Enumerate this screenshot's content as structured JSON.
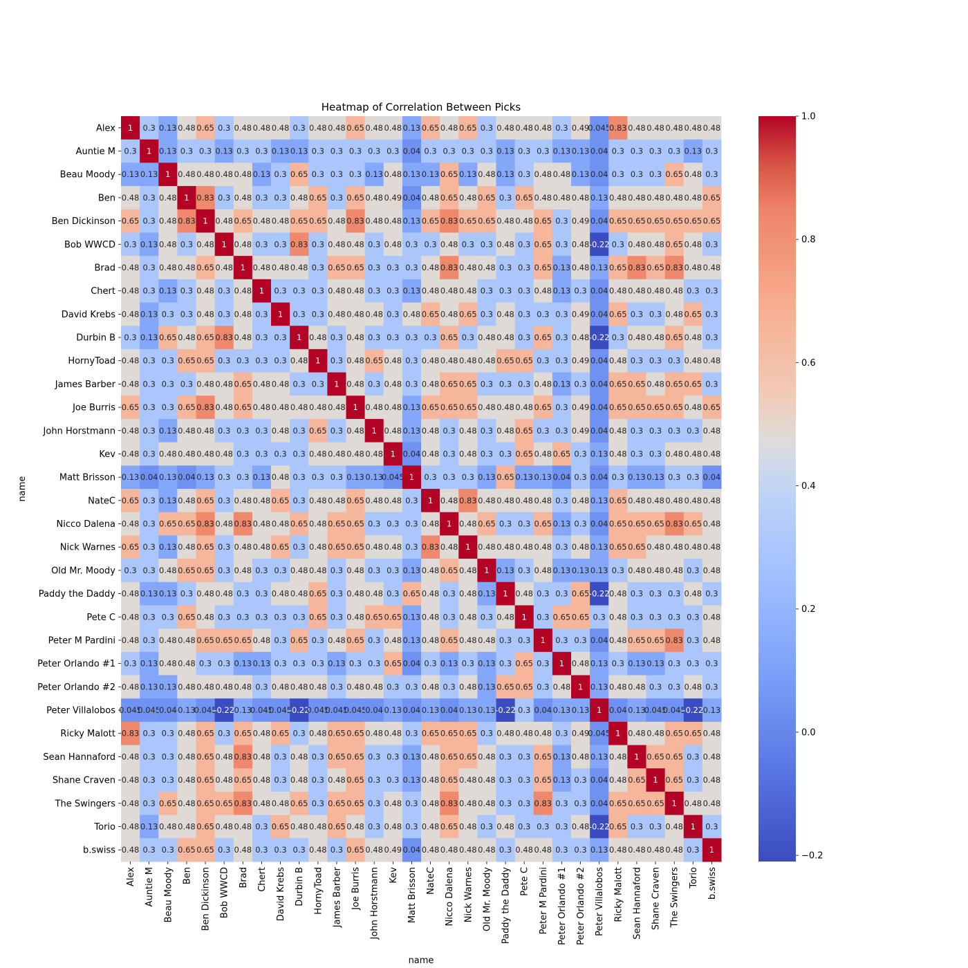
{
  "chart_data": {
    "type": "heatmap",
    "title": "Heatmap of Correlation Between Picks",
    "xlabel": "name",
    "ylabel": "name",
    "labels": [
      "Alex",
      "Auntie M",
      "Beau Moody",
      "Ben",
      "Ben Dickinson",
      "Bob WWCD",
      "Brad",
      "Chert",
      "David Krebs",
      "Durbin B",
      "HornyToad",
      "James Barber",
      "Joe Burris",
      "John Horstmann",
      "Kev",
      "Matt Brisson",
      "NateC",
      "Nicco Dalena",
      "Nick Warnes",
      "Old Mr. Moody",
      "Paddy the Daddy",
      "Pete C",
      "Peter M Pardini",
      "Peter Orlando #1",
      "Peter Orlando #2",
      "Peter Villalobos",
      "Ricky Malott",
      "Sean Hannaford",
      "Shane Craven",
      "The Swingers",
      "Torio",
      "b.swiss"
    ],
    "values": [
      [
        "1",
        "0.3",
        "0.13",
        "0.48",
        "0.65",
        "0.3",
        "0.48",
        "0.48",
        "0.48",
        "0.3",
        "0.48",
        "0.48",
        "0.65",
        "0.48",
        "0.48",
        "0.13",
        "0.65",
        "0.48",
        "0.65",
        "0.3",
        "0.48",
        "0.48",
        "0.48",
        "0.3",
        "0.49",
        "0.045",
        "0.83",
        "0.48",
        "0.48",
        "0.48",
        "0.48",
        "0.48"
      ],
      [
        "0.3",
        "1",
        "0.13",
        "0.3",
        "0.3",
        "0.13",
        "0.3",
        "0.3",
        "0.13",
        "0.13",
        "0.3",
        "0.3",
        "0.3",
        "0.3",
        "0.3",
        "0.04",
        "0.3",
        "0.3",
        "0.3",
        "0.3",
        "0.13",
        "0.3",
        "0.3",
        "0.13",
        "0.13",
        "0.04",
        "0.3",
        "0.3",
        "0.3",
        "0.3",
        "0.13",
        "0.3"
      ],
      [
        "0.13",
        "0.13",
        "1",
        "0.48",
        "0.48",
        "0.48",
        "0.48",
        "0.13",
        "0.3",
        "0.65",
        "0.3",
        "0.3",
        "0.3",
        "0.13",
        "0.48",
        "0.13",
        "0.13",
        "0.65",
        "0.13",
        "0.48",
        "0.13",
        "0.3",
        "0.48",
        "0.48",
        "0.13",
        "0.04",
        "0.3",
        "0.3",
        "0.3",
        "0.65",
        "0.48",
        "0.3"
      ],
      [
        "0.48",
        "0.3",
        "0.48",
        "1",
        "0.83",
        "0.3",
        "0.48",
        "0.3",
        "0.3",
        "0.48",
        "0.65",
        "0.3",
        "0.65",
        "0.48",
        "0.49",
        "0.04",
        "0.48",
        "0.65",
        "0.48",
        "0.65",
        "0.3",
        "0.65",
        "0.48",
        "0.48",
        "0.48",
        "0.13",
        "0.48",
        "0.48",
        "0.48",
        "0.48",
        "0.48",
        "0.65"
      ],
      [
        "0.65",
        "0.3",
        "0.48",
        "0.83",
        "1",
        "0.48",
        "0.65",
        "0.48",
        "0.48",
        "0.65",
        "0.65",
        "0.48",
        "0.83",
        "0.48",
        "0.48",
        "0.13",
        "0.65",
        "0.83",
        "0.65",
        "0.65",
        "0.48",
        "0.48",
        "0.65",
        "0.3",
        "0.49",
        "0.04",
        "0.65",
        "0.65",
        "0.65",
        "0.65",
        "0.65",
        "0.65"
      ],
      [
        "0.3",
        "0.13",
        "0.48",
        "0.3",
        "0.48",
        "1",
        "0.48",
        "0.3",
        "0.3",
        "0.83",
        "0.3",
        "0.48",
        "0.48",
        "0.3",
        "0.48",
        "0.3",
        "0.3",
        "0.48",
        "0.3",
        "0.3",
        "0.48",
        "0.3",
        "0.65",
        "0.3",
        "0.48",
        "-0.22",
        "0.3",
        "0.48",
        "0.48",
        "0.65",
        "0.48",
        "0.3"
      ],
      [
        "0.48",
        "0.3",
        "0.48",
        "0.48",
        "0.65",
        "0.48",
        "1",
        "0.48",
        "0.48",
        "0.48",
        "0.3",
        "0.65",
        "0.65",
        "0.3",
        "0.3",
        "0.3",
        "0.48",
        "0.83",
        "0.48",
        "0.48",
        "0.3",
        "0.3",
        "0.65",
        "0.13",
        "0.48",
        "0.13",
        "0.65",
        "0.83",
        "0.65",
        "0.83",
        "0.48",
        "0.48"
      ],
      [
        "0.48",
        "0.3",
        "0.13",
        "0.3",
        "0.48",
        "0.3",
        "0.48",
        "1",
        "0.3",
        "0.3",
        "0.3",
        "0.48",
        "0.48",
        "0.3",
        "0.3",
        "0.13",
        "0.48",
        "0.48",
        "0.48",
        "0.3",
        "0.3",
        "0.3",
        "0.48",
        "0.13",
        "0.3",
        "0.04",
        "0.48",
        "0.48",
        "0.48",
        "0.48",
        "0.3",
        "0.3"
      ],
      [
        "0.48",
        "0.13",
        "0.3",
        "0.3",
        "0.48",
        "0.3",
        "0.48",
        "0.3",
        "1",
        "0.3",
        "0.3",
        "0.48",
        "0.48",
        "0.48",
        "0.3",
        "0.48",
        "0.65",
        "0.48",
        "0.65",
        "0.3",
        "0.48",
        "0.3",
        "0.3",
        "0.3",
        "0.49",
        "0.04",
        "0.65",
        "0.3",
        "0.3",
        "0.48",
        "0.65",
        "0.3"
      ],
      [
        "0.3",
        "0.13",
        "0.65",
        "0.48",
        "0.65",
        "0.83",
        "0.48",
        "0.3",
        "0.3",
        "1",
        "0.48",
        "0.3",
        "0.48",
        "0.3",
        "0.3",
        "0.3",
        "0.3",
        "0.65",
        "0.3",
        "0.48",
        "0.48",
        "0.3",
        "0.65",
        "0.3",
        "0.48",
        "-0.22",
        "0.3",
        "0.48",
        "0.48",
        "0.65",
        "0.48",
        "0.3"
      ],
      [
        "0.48",
        "0.3",
        "0.3",
        "0.65",
        "0.65",
        "0.3",
        "0.3",
        "0.3",
        "0.3",
        "0.48",
        "1",
        "0.3",
        "0.48",
        "0.65",
        "0.48",
        "0.3",
        "0.48",
        "0.48",
        "0.48",
        "0.48",
        "0.65",
        "0.65",
        "0.3",
        "0.3",
        "0.49",
        "0.04",
        "0.48",
        "0.3",
        "0.3",
        "0.3",
        "0.48",
        "0.48"
      ],
      [
        "0.48",
        "0.3",
        "0.3",
        "0.3",
        "0.48",
        "0.48",
        "0.65",
        "0.48",
        "0.48",
        "0.3",
        "0.3",
        "1",
        "0.48",
        "0.3",
        "0.48",
        "0.3",
        "0.48",
        "0.65",
        "0.65",
        "0.3",
        "0.3",
        "0.3",
        "0.48",
        "0.13",
        "0.3",
        "0.04",
        "0.65",
        "0.65",
        "0.48",
        "0.65",
        "0.65",
        "0.3"
      ],
      [
        "0.65",
        "0.3",
        "0.3",
        "0.65",
        "0.83",
        "0.48",
        "0.65",
        "0.48",
        "0.48",
        "0.48",
        "0.48",
        "0.48",
        "1",
        "0.48",
        "0.48",
        "0.13",
        "0.65",
        "0.65",
        "0.65",
        "0.48",
        "0.48",
        "0.48",
        "0.65",
        "0.3",
        "0.49",
        "0.04",
        "0.65",
        "0.65",
        "0.65",
        "0.65",
        "0.48",
        "0.65"
      ],
      [
        "0.48",
        "0.3",
        "0.13",
        "0.48",
        "0.48",
        "0.3",
        "0.3",
        "0.3",
        "0.48",
        "0.3",
        "0.65",
        "0.3",
        "0.48",
        "1",
        "0.48",
        "0.13",
        "0.48",
        "0.3",
        "0.48",
        "0.3",
        "0.48",
        "0.65",
        "0.3",
        "0.3",
        "0.49",
        "0.04",
        "0.48",
        "0.3",
        "0.3",
        "0.3",
        "0.3",
        "0.48"
      ],
      [
        "0.48",
        "0.3",
        "0.48",
        "0.48",
        "0.48",
        "0.48",
        "0.3",
        "0.3",
        "0.3",
        "0.3",
        "0.48",
        "0.48",
        "0.48",
        "0.48",
        "1",
        "0.04",
        "0.48",
        "0.3",
        "0.48",
        "0.3",
        "0.3",
        "0.65",
        "0.48",
        "0.65",
        "0.3",
        "0.13",
        "0.48",
        "0.3",
        "0.3",
        "0.48",
        "0.48",
        "0.48"
      ],
      [
        "0.13",
        "0.04",
        "0.13",
        "0.04",
        "0.13",
        "0.3",
        "0.3",
        "0.13",
        "0.48",
        "0.3",
        "0.3",
        "0.3",
        "0.13",
        "0.13",
        "0.045",
        "1",
        "0.3",
        "0.3",
        "0.3",
        "0.13",
        "0.65",
        "0.13",
        "0.13",
        "0.04",
        "0.3",
        "0.04",
        "0.3",
        "0.13",
        "0.13",
        "0.3",
        "0.3",
        "0.04"
      ],
      [
        "0.65",
        "0.3",
        "0.13",
        "0.48",
        "0.65",
        "0.3",
        "0.48",
        "0.48",
        "0.65",
        "0.3",
        "0.48",
        "0.48",
        "0.65",
        "0.48",
        "0.48",
        "0.3",
        "1",
        "0.48",
        "0.83",
        "0.48",
        "0.48",
        "0.48",
        "0.48",
        "0.3",
        "0.48",
        "0.13",
        "0.65",
        "0.48",
        "0.48",
        "0.48",
        "0.48",
        "0.48"
      ],
      [
        "0.48",
        "0.3",
        "0.65",
        "0.65",
        "0.83",
        "0.48",
        "0.83",
        "0.48",
        "0.48",
        "0.65",
        "0.48",
        "0.65",
        "0.65",
        "0.3",
        "0.3",
        "0.3",
        "0.48",
        "1",
        "0.48",
        "0.65",
        "0.3",
        "0.3",
        "0.65",
        "0.13",
        "0.3",
        "0.04",
        "0.65",
        "0.65",
        "0.65",
        "0.83",
        "0.65",
        "0.48"
      ],
      [
        "0.65",
        "0.3",
        "0.13",
        "0.48",
        "0.65",
        "0.3",
        "0.48",
        "0.48",
        "0.65",
        "0.3",
        "0.48",
        "0.65",
        "0.65",
        "0.48",
        "0.48",
        "0.3",
        "0.83",
        "0.48",
        "1",
        "0.48",
        "0.48",
        "0.48",
        "0.48",
        "0.3",
        "0.48",
        "0.13",
        "0.65",
        "0.65",
        "0.48",
        "0.48",
        "0.48",
        "0.48"
      ],
      [
        "0.3",
        "0.3",
        "0.48",
        "0.65",
        "0.65",
        "0.3",
        "0.48",
        "0.3",
        "0.3",
        "0.48",
        "0.48",
        "0.3",
        "0.48",
        "0.3",
        "0.3",
        "0.13",
        "0.48",
        "0.65",
        "0.48",
        "1",
        "0.13",
        "0.3",
        "0.48",
        "0.13",
        "0.13",
        "0.13",
        "0.3",
        "0.48",
        "0.48",
        "0.48",
        "0.3",
        "0.48"
      ],
      [
        "0.48",
        "0.13",
        "0.13",
        "0.3",
        "0.48",
        "0.48",
        "0.3",
        "0.3",
        "0.48",
        "0.48",
        "0.65",
        "0.3",
        "0.48",
        "0.48",
        "0.3",
        "0.65",
        "0.48",
        "0.3",
        "0.48",
        "0.13",
        "1",
        "0.48",
        "0.3",
        "0.3",
        "0.65",
        "-0.22",
        "0.48",
        "0.3",
        "0.3",
        "0.3",
        "0.48",
        "0.3"
      ],
      [
        "0.48",
        "0.3",
        "0.3",
        "0.65",
        "0.48",
        "0.3",
        "0.3",
        "0.3",
        "0.3",
        "0.3",
        "0.65",
        "0.3",
        "0.48",
        "0.65",
        "0.65",
        "0.13",
        "0.48",
        "0.3",
        "0.48",
        "0.3",
        "0.48",
        "1",
        "0.3",
        "0.65",
        "0.65",
        "0.3",
        "0.48",
        "0.3",
        "0.3",
        "0.3",
        "0.3",
        "0.48"
      ],
      [
        "0.48",
        "0.3",
        "0.48",
        "0.48",
        "0.65",
        "0.65",
        "0.65",
        "0.48",
        "0.3",
        "0.65",
        "0.3",
        "0.48",
        "0.65",
        "0.3",
        "0.48",
        "0.13",
        "0.48",
        "0.65",
        "0.48",
        "0.48",
        "0.3",
        "0.3",
        "1",
        "0.3",
        "0.3",
        "0.04",
        "0.48",
        "0.65",
        "0.65",
        "0.83",
        "0.3",
        "0.48"
      ],
      [
        "0.3",
        "0.13",
        "0.48",
        "0.48",
        "0.3",
        "0.3",
        "0.13",
        "0.13",
        "0.3",
        "0.3",
        "0.3",
        "0.13",
        "0.3",
        "0.3",
        "0.65",
        "0.04",
        "0.3",
        "0.13",
        "0.3",
        "0.13",
        "0.3",
        "0.65",
        "0.3",
        "1",
        "0.48",
        "0.13",
        "0.3",
        "0.13",
        "0.13",
        "0.3",
        "0.3",
        "0.3"
      ],
      [
        "0.48",
        "0.13",
        "0.13",
        "0.48",
        "0.48",
        "0.48",
        "0.48",
        "0.3",
        "0.48",
        "0.48",
        "0.48",
        "0.3",
        "0.48",
        "0.48",
        "0.3",
        "0.3",
        "0.48",
        "0.3",
        "0.48",
        "0.13",
        "0.65",
        "0.65",
        "0.3",
        "0.48",
        "1",
        "0.13",
        "0.48",
        "0.48",
        "0.3",
        "0.3",
        "0.48",
        "0.3"
      ],
      [
        "0.045",
        "0.045",
        "0.04",
        "0.13",
        "0.045",
        "-0.22",
        "0.13",
        "0.045",
        "0.045",
        "-0.22",
        "0.045",
        "0.045",
        "0.045",
        "0.04",
        "0.13",
        "0.04",
        "0.13",
        "0.04",
        "0.13",
        "0.13",
        "-0.22",
        "0.3",
        "0.04",
        "0.13",
        "0.13",
        "1",
        "0.04",
        "0.13",
        "0.045",
        "0.045",
        "-0.22",
        "0.13"
      ],
      [
        "0.83",
        "0.3",
        "0.3",
        "0.48",
        "0.65",
        "0.3",
        "0.65",
        "0.48",
        "0.65",
        "0.3",
        "0.48",
        "0.65",
        "0.65",
        "0.48",
        "0.48",
        "0.3",
        "0.65",
        "0.65",
        "0.65",
        "0.3",
        "0.48",
        "0.48",
        "0.48",
        "0.3",
        "0.49",
        "0.045",
        "1",
        "0.48",
        "0.48",
        "0.65",
        "0.65",
        "0.48"
      ],
      [
        "0.48",
        "0.3",
        "0.3",
        "0.48",
        "0.65",
        "0.48",
        "0.83",
        "0.48",
        "0.3",
        "0.48",
        "0.3",
        "0.65",
        "0.65",
        "0.3",
        "0.3",
        "0.13",
        "0.48",
        "0.65",
        "0.65",
        "0.48",
        "0.3",
        "0.3",
        "0.65",
        "0.13",
        "0.48",
        "0.13",
        "0.48",
        "1",
        "0.65",
        "0.65",
        "0.3",
        "0.48"
      ],
      [
        "0.48",
        "0.3",
        "0.3",
        "0.48",
        "0.65",
        "0.48",
        "0.65",
        "0.48",
        "0.3",
        "0.48",
        "0.3",
        "0.48",
        "0.65",
        "0.3",
        "0.3",
        "0.13",
        "0.48",
        "0.65",
        "0.48",
        "0.48",
        "0.3",
        "0.3",
        "0.65",
        "0.13",
        "0.3",
        "0.04",
        "0.48",
        "0.65",
        "1",
        "0.65",
        "0.3",
        "0.48"
      ],
      [
        "0.48",
        "0.3",
        "0.65",
        "0.48",
        "0.65",
        "0.65",
        "0.83",
        "0.48",
        "0.48",
        "0.65",
        "0.3",
        "0.65",
        "0.65",
        "0.3",
        "0.48",
        "0.3",
        "0.48",
        "0.83",
        "0.48",
        "0.48",
        "0.3",
        "0.3",
        "0.83",
        "0.3",
        "0.3",
        "0.04",
        "0.65",
        "0.65",
        "0.65",
        "1",
        "0.48",
        "0.48"
      ],
      [
        "0.48",
        "0.13",
        "0.48",
        "0.48",
        "0.65",
        "0.48",
        "0.48",
        "0.3",
        "0.65",
        "0.48",
        "0.48",
        "0.65",
        "0.48",
        "0.3",
        "0.48",
        "0.3",
        "0.48",
        "0.65",
        "0.48",
        "0.3",
        "0.48",
        "0.3",
        "0.3",
        "0.3",
        "0.48",
        "-0.22",
        "0.65",
        "0.3",
        "0.3",
        "0.48",
        "1",
        "0.3"
      ],
      [
        "0.48",
        "0.3",
        "0.3",
        "0.65",
        "0.65",
        "0.3",
        "0.48",
        "0.3",
        "0.3",
        "0.3",
        "0.48",
        "0.3",
        "0.65",
        "0.48",
        "0.49",
        "0.04",
        "0.48",
        "0.48",
        "0.48",
        "0.48",
        "0.3",
        "0.48",
        "0.48",
        "0.3",
        "0.3",
        "0.13",
        "0.48",
        "0.48",
        "0.48",
        "0.48",
        "0.3",
        "1"
      ]
    ],
    "colorbar": {
      "min": -0.21,
      "max": 1.0,
      "ticks": [
        "1.0",
        "0.8",
        "0.6",
        "0.4",
        "0.2",
        "0.0",
        "−0.2"
      ],
      "tick_values": [
        1.0,
        0.8,
        0.6,
        0.4,
        0.2,
        0.0,
        -0.2
      ]
    },
    "colormap": "coolwarm",
    "grid": false
  }
}
